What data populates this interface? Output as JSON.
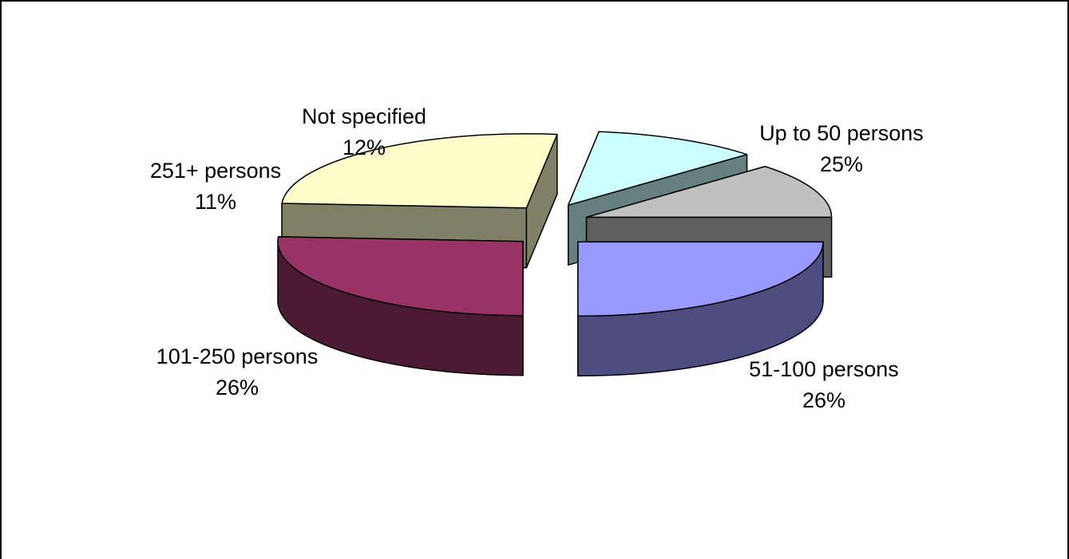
{
  "chart_data": {
    "type": "pie",
    "title": "",
    "style": "3d-exploded",
    "series": [
      {
        "values": [
          25,
          26,
          26,
          11,
          12
        ],
        "categories": [
          "Up to 50 persons",
          "51-100 persons",
          "101-250 persons",
          "251+ persons",
          "Not specified"
        ]
      }
    ],
    "labels": [
      {
        "name": "Up to 50 persons",
        "pct": "25%"
      },
      {
        "name": "51-100 persons",
        "pct": "26%"
      },
      {
        "name": "101-250 persons",
        "pct": "26%"
      },
      {
        "name": "251+ persons",
        "pct": "11%"
      },
      {
        "name": "Not specified",
        "pct": "12%"
      }
    ],
    "colors": {
      "top": [
        "#9999FF",
        "#993366",
        "#FFFFCC",
        "#CCFFFF",
        "#C0C0C0"
      ],
      "side": [
        "#4D4D80",
        "#4D1A33",
        "#808066",
        "#667F80",
        "#606060"
      ]
    },
    "legend": "none"
  }
}
